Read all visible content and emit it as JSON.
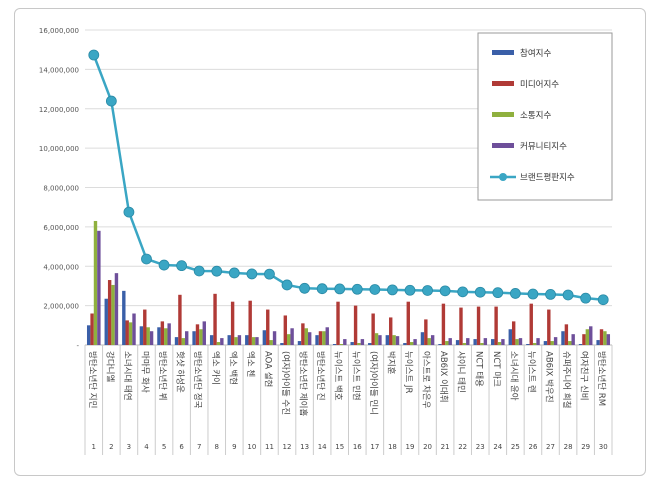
{
  "chart_data": {
    "type": "bar+line",
    "categories": [
      "방탄소년단 지민",
      "강다니엘",
      "소녀시대 태연",
      "마마무 화사",
      "방탄소년단 뷔",
      "핫샷 하성운",
      "방탄소년단 정국",
      "엑소 카이",
      "엑소 백현",
      "엑소 첸",
      "AOA 설현",
      "(여자)아이들 수진",
      "방탄소년단 제이홉",
      "방탄소년단 진",
      "뉴이스트 백호",
      "뉴이스트 민현",
      "(여자)아이들 민니",
      "박지훈",
      "뉴이스트 JR",
      "아스트로 차은우",
      "AB6IX 이대휘",
      "샤이니 태민",
      "NCT 태용",
      "NCT 마크",
      "소녀시대 윤아",
      "뉴이스트 렌",
      "AB6IX 박우진",
      "슈퍼주니어 희철",
      "여자친구 신비",
      "방탄소년단 RM"
    ],
    "ranks": [
      "1",
      "2",
      "3",
      "4",
      "5",
      "6",
      "7",
      "8",
      "9",
      "10",
      "11",
      "12",
      "13",
      "14",
      "15",
      "16",
      "17",
      "18",
      "19",
      "20",
      "21",
      "22",
      "23",
      "24",
      "25",
      "26",
      "27",
      "28",
      "29",
      "30"
    ],
    "ylim": [
      0,
      16000000
    ],
    "yticks": [
      "-",
      "2,000,000",
      "4,000,000",
      "6,000,000",
      "8,000,000",
      "10,000,000",
      "12,000,000",
      "14,000,000",
      "16,000,000"
    ],
    "grid": true,
    "legend_position": "right",
    "series": [
      {
        "name": "참여지수",
        "kind": "bar",
        "color": "#3a5fa8",
        "values": [
          1000000,
          2350000,
          2750000,
          950000,
          900000,
          400000,
          700000,
          500000,
          500000,
          500000,
          750000,
          100000,
          200000,
          500000,
          50000,
          150000,
          100000,
          500000,
          100000,
          650000,
          50000,
          250000,
          300000,
          300000,
          800000,
          50000,
          200000,
          700000,
          50000,
          250000
        ]
      },
      {
        "name": "미디어지수",
        "kind": "bar",
        "color": "#b03a36",
        "values": [
          1600000,
          3300000,
          1250000,
          1800000,
          1200000,
          2550000,
          1050000,
          2600000,
          2200000,
          2250000,
          1800000,
          1500000,
          1100000,
          700000,
          2200000,
          2000000,
          1600000,
          1400000,
          2200000,
          1300000,
          2100000,
          1900000,
          1950000,
          1950000,
          1200000,
          2100000,
          1800000,
          1050000,
          550000,
          800000
        ]
      },
      {
        "name": "소통지수",
        "kind": "bar",
        "color": "#8fb03e",
        "values": [
          6300000,
          3050000,
          1150000,
          900000,
          850000,
          350000,
          800000,
          150000,
          400000,
          400000,
          250000,
          550000,
          850000,
          700000,
          50000,
          100000,
          600000,
          500000,
          150000,
          350000,
          200000,
          100000,
          100000,
          150000,
          300000,
          100000,
          200000,
          200000,
          800000,
          700000
        ]
      },
      {
        "name": "커뮤니티지수",
        "kind": "bar",
        "color": "#6e4f9a",
        "values": [
          5800000,
          3650000,
          1600000,
          700000,
          1100000,
          700000,
          1200000,
          350000,
          500000,
          400000,
          700000,
          850000,
          650000,
          900000,
          300000,
          300000,
          500000,
          450000,
          300000,
          500000,
          350000,
          350000,
          350000,
          300000,
          350000,
          350000,
          400000,
          550000,
          950000,
          550000
        ]
      },
      {
        "name": "브랜드평판지수",
        "kind": "line",
        "color": "#3aa6c4",
        "values": [
          14730000,
          12390000,
          6750000,
          4370000,
          4060000,
          4030000,
          3760000,
          3750000,
          3660000,
          3610000,
          3600000,
          3050000,
          2880000,
          2860000,
          2850000,
          2830000,
          2820000,
          2800000,
          2780000,
          2770000,
          2750000,
          2700000,
          2680000,
          2660000,
          2620000,
          2590000,
          2570000,
          2540000,
          2380000,
          2300000
        ]
      }
    ]
  }
}
